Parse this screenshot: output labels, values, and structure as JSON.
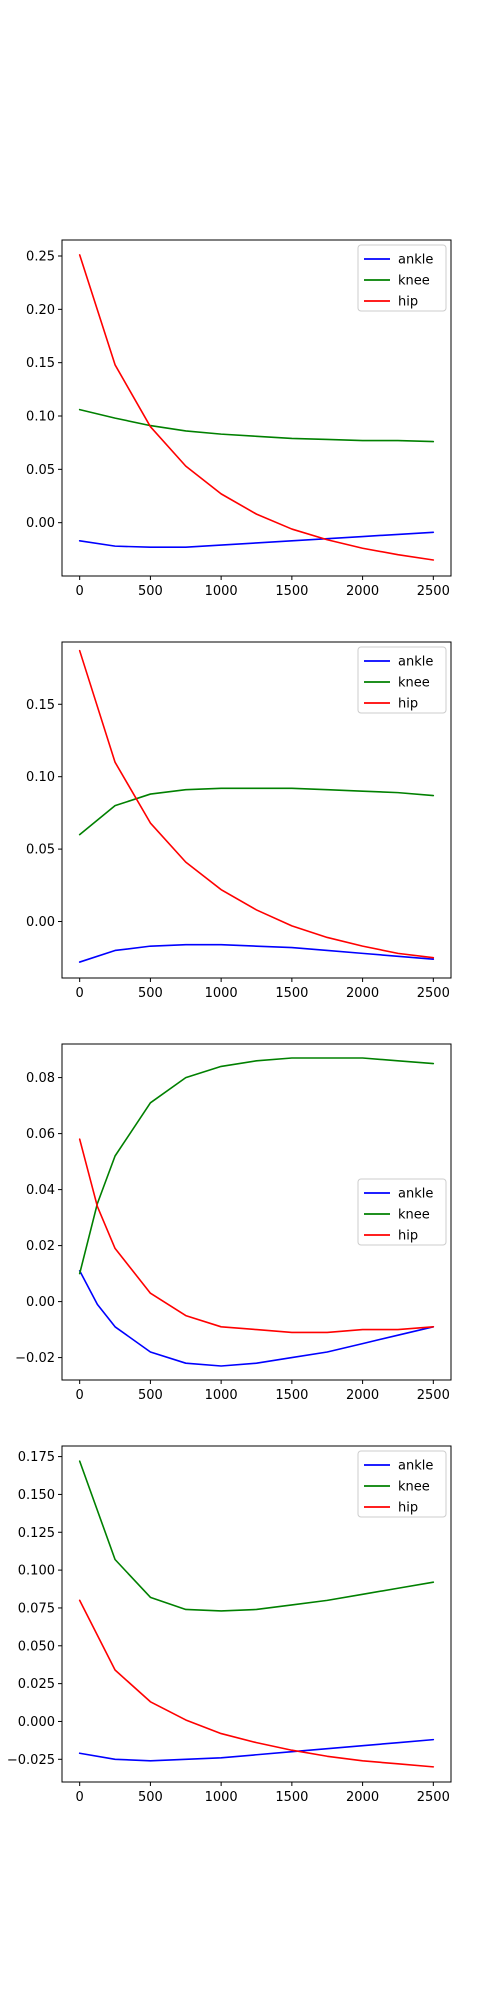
{
  "chart_data": [
    {
      "type": "line",
      "xlim": [
        -125,
        2625
      ],
      "ylim": [
        -0.05,
        0.265
      ],
      "xticks": [
        0,
        500,
        1000,
        1500,
        2000,
        2500
      ],
      "yticks": [
        0.0,
        0.05,
        0.1,
        0.15,
        0.2,
        0.25
      ],
      "ytick_labels": [
        "0.00",
        "0.05",
        "0.10",
        "0.15",
        "0.20",
        "0.25"
      ],
      "legend": "upper right",
      "x": [
        0,
        250,
        500,
        750,
        1000,
        1250,
        1500,
        1750,
        2000,
        2250,
        2500
      ],
      "series": [
        {
          "name": "ankle",
          "color": "#0000ff",
          "values": [
            -0.017,
            -0.022,
            -0.023,
            -0.023,
            -0.021,
            -0.019,
            -0.017,
            -0.015,
            -0.013,
            -0.011,
            -0.009
          ]
        },
        {
          "name": "knee",
          "color": "#008000",
          "values": [
            0.106,
            0.098,
            0.091,
            0.086,
            0.083,
            0.081,
            0.079,
            0.078,
            0.077,
            0.077,
            0.076
          ]
        },
        {
          "name": "hip",
          "color": "#ff0000",
          "values": [
            0.251,
            0.148,
            0.09,
            0.053,
            0.027,
            0.008,
            -0.006,
            -0.016,
            -0.024,
            -0.03,
            -0.035
          ]
        }
      ]
    },
    {
      "type": "line",
      "xlim": [
        -125,
        2625
      ],
      "ylim": [
        -0.039,
        0.193
      ],
      "xticks": [
        0,
        500,
        1000,
        1500,
        2000,
        2500
      ],
      "yticks": [
        0.0,
        0.05,
        0.1,
        0.15
      ],
      "ytick_labels": [
        "0.00",
        "0.05",
        "0.10",
        "0.15"
      ],
      "legend": "upper right",
      "x": [
        0,
        250,
        500,
        750,
        1000,
        1250,
        1500,
        1750,
        2000,
        2250,
        2500
      ],
      "series": [
        {
          "name": "ankle",
          "color": "#0000ff",
          "values": [
            -0.028,
            -0.02,
            -0.017,
            -0.016,
            -0.016,
            -0.017,
            -0.018,
            -0.02,
            -0.022,
            -0.024,
            -0.026
          ]
        },
        {
          "name": "knee",
          "color": "#008000",
          "values": [
            0.06,
            0.08,
            0.088,
            0.091,
            0.092,
            0.092,
            0.092,
            0.091,
            0.09,
            0.089,
            0.087
          ]
        },
        {
          "name": "hip",
          "color": "#ff0000",
          "values": [
            0.187,
            0.11,
            0.068,
            0.041,
            0.022,
            0.008,
            -0.003,
            -0.011,
            -0.017,
            -0.022,
            -0.025
          ]
        }
      ]
    },
    {
      "type": "line",
      "xlim": [
        -125,
        2625
      ],
      "ylim": [
        -0.028,
        0.092
      ],
      "xticks": [
        0,
        500,
        1000,
        1500,
        2000,
        2500
      ],
      "yticks": [
        -0.02,
        0.0,
        0.02,
        0.04,
        0.06,
        0.08
      ],
      "ytick_labels": [
        "−0.02",
        "0.00",
        "0.02",
        "0.04",
        "0.06",
        "0.08"
      ],
      "legend": "center right",
      "x": [
        0,
        125,
        250,
        500,
        750,
        1000,
        1250,
        1500,
        1750,
        2000,
        2250,
        2500
      ],
      "series": [
        {
          "name": "ankle",
          "color": "#0000ff",
          "values": [
            0.011,
            -0.001,
            -0.009,
            -0.018,
            -0.022,
            -0.023,
            -0.022,
            -0.02,
            -0.018,
            -0.015,
            -0.012,
            -0.009
          ]
        },
        {
          "name": "knee",
          "color": "#008000",
          "values": [
            0.01,
            0.035,
            0.052,
            0.071,
            0.08,
            0.084,
            0.086,
            0.087,
            0.087,
            0.087,
            0.086,
            0.085
          ]
        },
        {
          "name": "hip",
          "color": "#ff0000",
          "values": [
            0.058,
            0.034,
            0.019,
            0.003,
            -0.005,
            -0.009,
            -0.01,
            -0.011,
            -0.011,
            -0.01,
            -0.01,
            -0.009
          ]
        }
      ]
    },
    {
      "type": "line",
      "xlim": [
        -125,
        2625
      ],
      "ylim": [
        -0.04,
        0.182
      ],
      "xticks": [
        0,
        500,
        1000,
        1500,
        2000,
        2500
      ],
      "yticks": [
        -0.025,
        0.0,
        0.025,
        0.05,
        0.075,
        0.1,
        0.125,
        0.15,
        0.175
      ],
      "ytick_labels": [
        "−0.025",
        "0.000",
        "0.025",
        "0.050",
        "0.075",
        "0.100",
        "0.125",
        "0.150",
        "0.175"
      ],
      "legend": "upper right",
      "x": [
        0,
        250,
        500,
        750,
        1000,
        1250,
        1500,
        1750,
        2000,
        2250,
        2500
      ],
      "series": [
        {
          "name": "ankle",
          "color": "#0000ff",
          "values": [
            -0.021,
            -0.025,
            -0.026,
            -0.025,
            -0.024,
            -0.022,
            -0.02,
            -0.018,
            -0.016,
            -0.014,
            -0.012
          ]
        },
        {
          "name": "knee",
          "color": "#008000",
          "values": [
            0.172,
            0.107,
            0.082,
            0.074,
            0.073,
            0.074,
            0.077,
            0.08,
            0.084,
            0.088,
            0.092
          ]
        },
        {
          "name": "hip",
          "color": "#ff0000",
          "values": [
            0.08,
            0.034,
            0.013,
            0.001,
            -0.008,
            -0.014,
            -0.019,
            -0.023,
            -0.026,
            -0.028,
            -0.03
          ]
        }
      ]
    }
  ]
}
